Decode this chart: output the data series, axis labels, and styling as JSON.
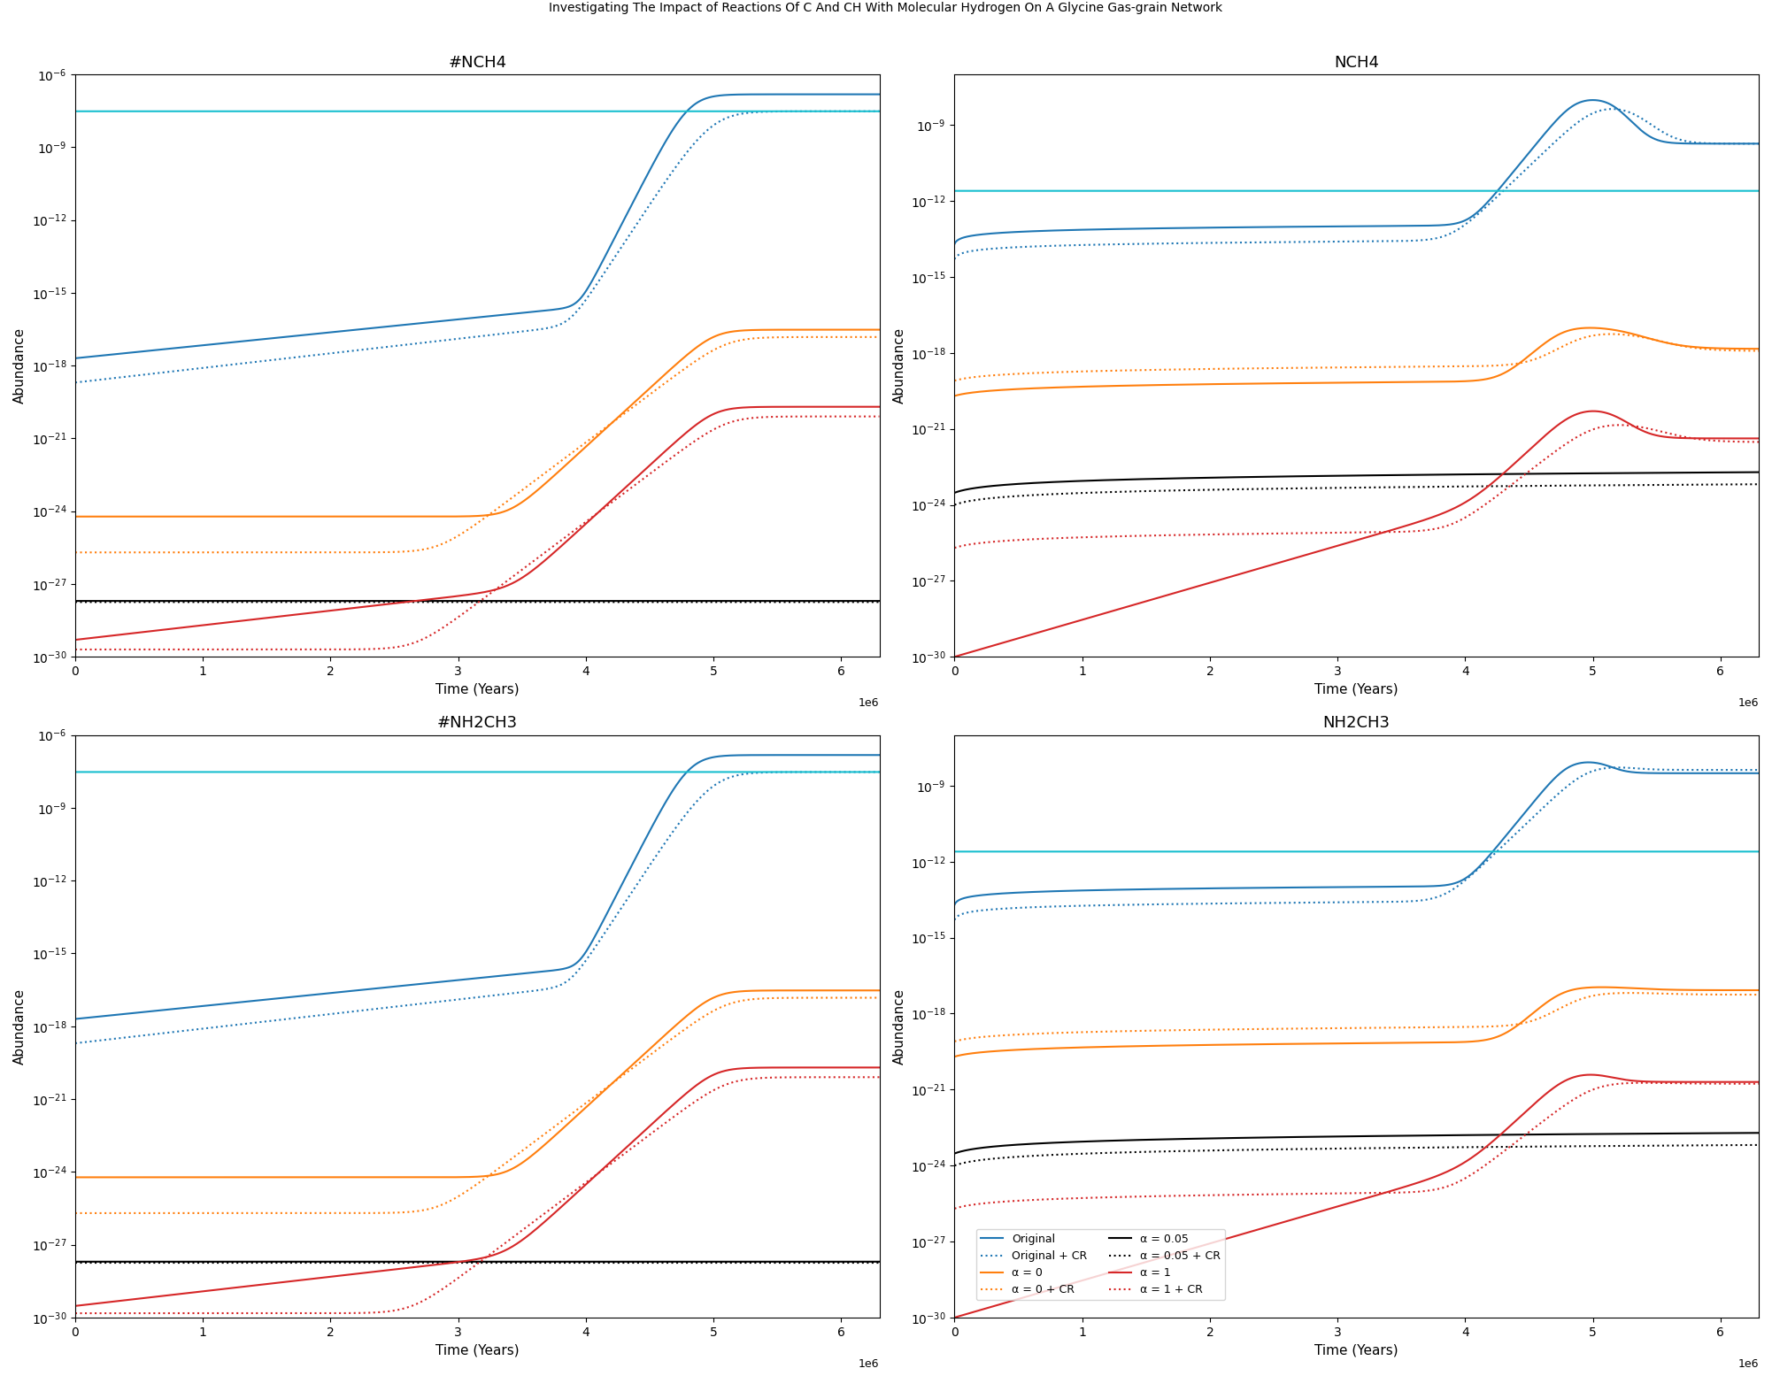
{
  "titles": [
    "#NCH4",
    "NCH4",
    "#NH2CH3",
    "NH2CH3"
  ],
  "ylims_grain": [
    1e-30,
    1e-06
  ],
  "ylims_gas": [
    1e-30,
    1e-07
  ],
  "xlim": [
    0,
    6300000.0
  ],
  "xlabel": "Time (Years)",
  "ylabel": "Abundance",
  "blue": "#1f77b4",
  "cyan": "#17becf",
  "orange": "#ff7f0e",
  "black": "#000000",
  "red": "#d62728",
  "cyan_level_grain": 3e-08,
  "cyan_level_gas_nch4": 2.5e-12,
  "cyan_level_gas_nh2": 2.5e-12,
  "figsize": [
    20.02,
    15.55
  ],
  "dpi": 100,
  "suptitle": "Investigating The Impact of Reactions Of C And CH With Molecular Hydrogen On A Glycine Gas-grain Network"
}
